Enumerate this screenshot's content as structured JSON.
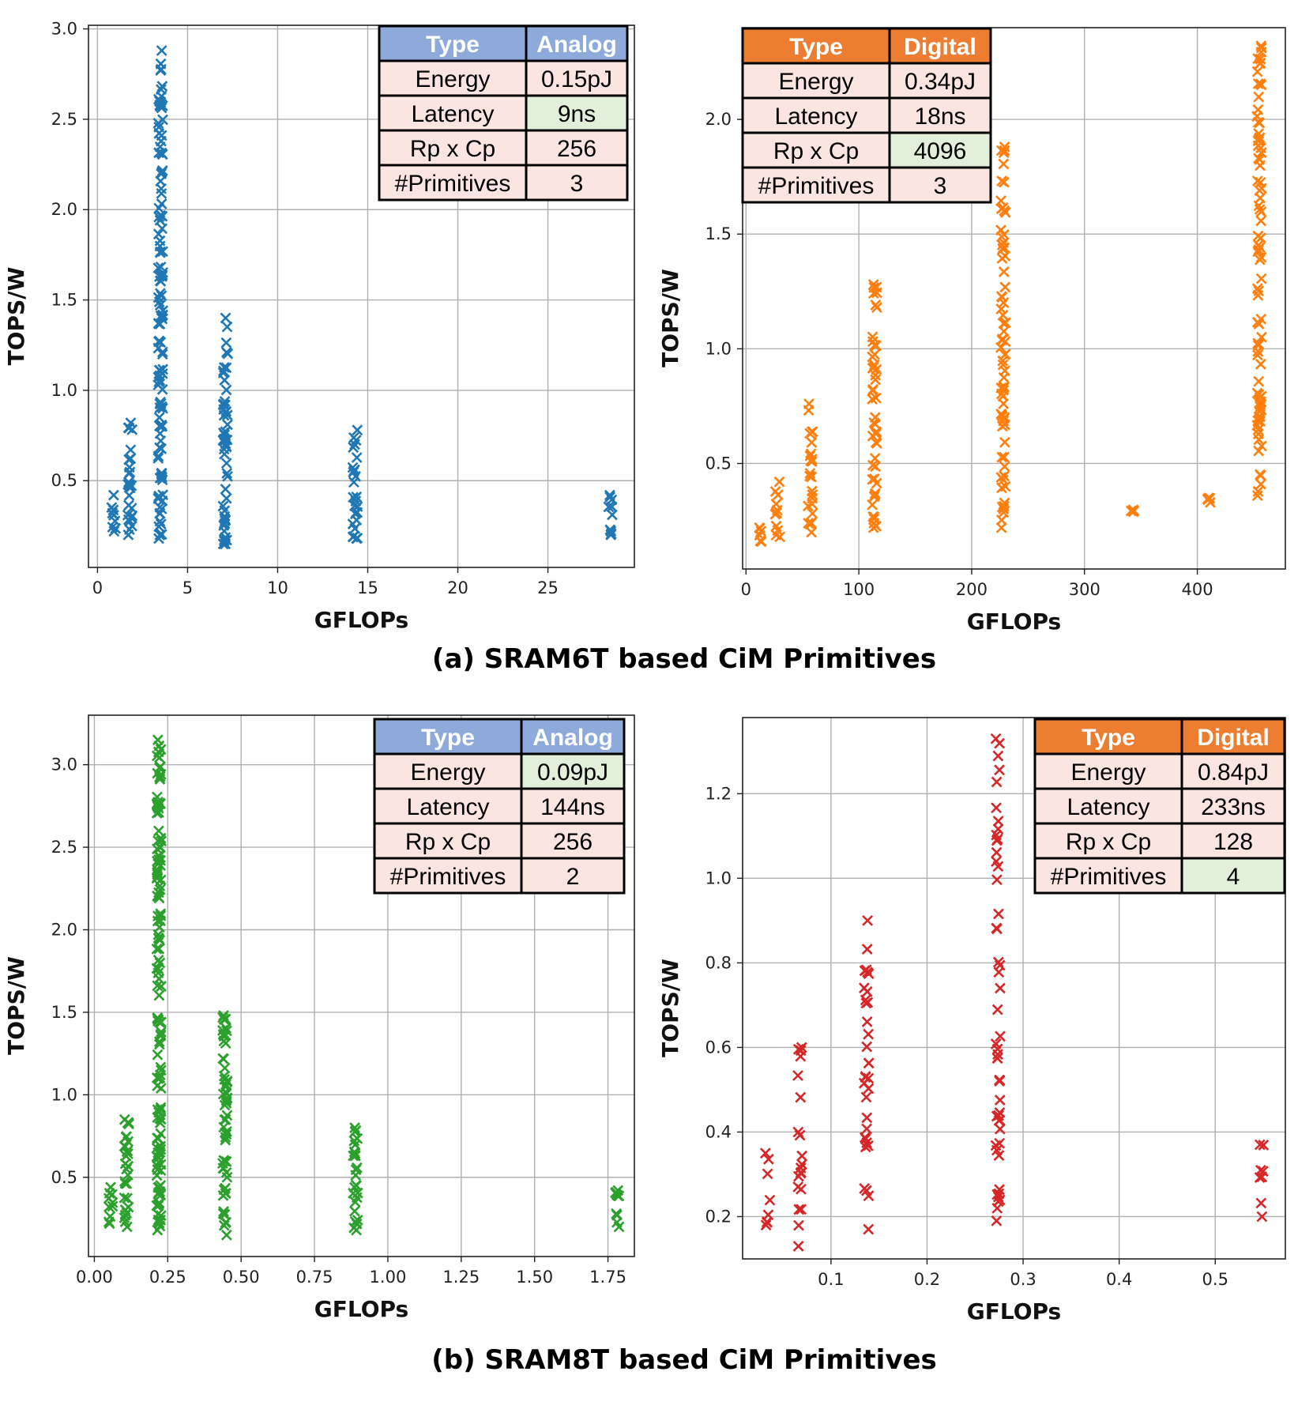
{
  "chart_data": [
    {
      "type": "scatter",
      "id": "sram6t-analog",
      "xlabel": "GFLOPs",
      "ylabel": "TOPS/W",
      "xlim": [
        -0.5,
        29.8
      ],
      "ylim": [
        0.02,
        3.02
      ],
      "xticks": [
        "0",
        "5",
        "10",
        "15",
        "20",
        "25"
      ],
      "xtick_values": [
        0,
        5,
        10,
        15,
        20,
        25
      ],
      "yticks": [
        "0.5",
        "1.0",
        "1.5",
        "2.0",
        "2.5",
        "3.0"
      ],
      "ytick_values": [
        0.5,
        1.0,
        1.5,
        2.0,
        2.5,
        3.0
      ],
      "grid": true,
      "color": "#1f77b4",
      "marker": "x",
      "series": [
        {
          "name": "SRAM6T Analog",
          "clusters": [
            {
              "x": 0.9,
              "ymin": 0.22,
              "ymax": 0.42
            },
            {
              "x": 1.8,
              "ymin": 0.2,
              "ymax": 0.82
            },
            {
              "x": 3.5,
              "ymin": 0.18,
              "ymax": 2.88
            },
            {
              "x": 7.1,
              "ymin": 0.15,
              "ymax": 1.4
            },
            {
              "x": 14.3,
              "ymin": 0.18,
              "ymax": 0.78
            },
            {
              "x": 28.5,
              "ymin": 0.2,
              "ymax": 0.42
            }
          ]
        }
      ],
      "table": {
        "header": [
          "Type",
          "Analog"
        ],
        "rows": [
          [
            "Energy",
            "0.15pJ"
          ],
          [
            "Latency",
            "9ns"
          ],
          [
            "Rp x Cp",
            "256"
          ],
          [
            "#Primitives",
            "3"
          ]
        ],
        "highlight_row": 1,
        "header_color": "#8eaadb"
      }
    },
    {
      "type": "scatter",
      "id": "sram6t-digital",
      "xlabel": "GFLOPs",
      "ylabel": "TOPS/W",
      "xlim": [
        -3,
        478
      ],
      "ylim": [
        0.04,
        2.4
      ],
      "xticks": [
        "0",
        "100",
        "200",
        "300",
        "400"
      ],
      "xtick_values": [
        0,
        100,
        200,
        300,
        400
      ],
      "yticks": [
        "0.5",
        "1.0",
        "1.5",
        "2.0"
      ],
      "ytick_values": [
        0.5,
        1.0,
        1.5,
        2.0
      ],
      "grid": true,
      "color": "#ff7f0e",
      "marker": "x",
      "series": [
        {
          "name": "SRAM6T Digital",
          "clusters": [
            {
              "x": 14,
              "ymin": 0.16,
              "ymax": 0.22
            },
            {
              "x": 28,
              "ymin": 0.18,
              "ymax": 0.42
            },
            {
              "x": 57,
              "ymin": 0.2,
              "ymax": 0.76
            },
            {
              "x": 114,
              "ymin": 0.22,
              "ymax": 1.28
            },
            {
              "x": 228,
              "ymin": 0.22,
              "ymax": 1.88
            },
            {
              "x": 342,
              "ymin": 0.29,
              "ymax": 0.29
            },
            {
              "x": 410,
              "ymin": 0.34,
              "ymax": 0.34
            },
            {
              "x": 455,
              "ymin": 0.36,
              "ymax": 2.32
            }
          ]
        }
      ],
      "table": {
        "header": [
          "Type",
          "Digital"
        ],
        "rows": [
          [
            "Energy",
            "0.34pJ"
          ],
          [
            "Latency",
            "18ns"
          ],
          [
            "Rp x Cp",
            "4096"
          ],
          [
            "#Primitives",
            "3"
          ]
        ],
        "highlight_row": 2,
        "header_color": "#ed7d31"
      }
    },
    {
      "type": "scatter",
      "id": "sram8t-analog",
      "xlabel": "GFLOPs",
      "ylabel": "TOPS/W",
      "xlim": [
        -0.02,
        1.84
      ],
      "ylim": [
        0.02,
        3.3
      ],
      "xticks": [
        "0.00",
        "0.25",
        "0.50",
        "0.75",
        "1.00",
        "1.25",
        "1.50",
        "1.75"
      ],
      "xtick_values": [
        0,
        0.25,
        0.5,
        0.75,
        1.0,
        1.25,
        1.5,
        1.75
      ],
      "yticks": [
        "0.5",
        "1.0",
        "1.5",
        "2.0",
        "2.5",
        "3.0"
      ],
      "ytick_values": [
        0.5,
        1.0,
        1.5,
        2.0,
        2.5,
        3.0
      ],
      "grid": true,
      "color": "#2ca02c",
      "marker": "x",
      "series": [
        {
          "name": "SRAM8T Analog",
          "clusters": [
            {
              "x": 0.055,
              "ymin": 0.22,
              "ymax": 0.44
            },
            {
              "x": 0.11,
              "ymin": 0.2,
              "ymax": 0.85
            },
            {
              "x": 0.22,
              "ymin": 0.18,
              "ymax": 3.15
            },
            {
              "x": 0.445,
              "ymin": 0.15,
              "ymax": 1.48
            },
            {
              "x": 0.89,
              "ymin": 0.18,
              "ymax": 0.8
            },
            {
              "x": 1.78,
              "ymin": 0.2,
              "ymax": 0.42
            }
          ]
        }
      ],
      "table": {
        "header": [
          "Type",
          "Analog"
        ],
        "rows": [
          [
            "Energy",
            "0.09pJ"
          ],
          [
            "Latency",
            "144ns"
          ],
          [
            "Rp x Cp",
            "256"
          ],
          [
            "#Primitives",
            "2"
          ]
        ],
        "highlight_row": 0,
        "header_color": "#8eaadb"
      }
    },
    {
      "type": "scatter",
      "id": "sram8t-digital",
      "xlabel": "GFLOPs",
      "ylabel": "TOPS/W",
      "xlim": [
        0.008,
        0.573
      ],
      "ylim": [
        0.1,
        1.38
      ],
      "xticks": [
        "0.1",
        "0.2",
        "0.3",
        "0.4",
        "0.5"
      ],
      "xtick_values": [
        0.1,
        0.2,
        0.3,
        0.4,
        0.5
      ],
      "yticks": [
        "0.2",
        "0.4",
        "0.6",
        "0.8",
        "1.0",
        "1.2"
      ],
      "ytick_values": [
        0.2,
        0.4,
        0.6,
        0.8,
        1.0,
        1.2
      ],
      "grid": true,
      "color": "#d62728",
      "marker": "x",
      "series": [
        {
          "name": "SRAM8T Digital",
          "clusters": [
            {
              "x": 0.034,
              "ymin": 0.18,
              "ymax": 0.35
            },
            {
              "x": 0.068,
              "ymin": 0.13,
              "ymax": 0.6
            },
            {
              "x": 0.137,
              "ymin": 0.17,
              "ymax": 0.9
            },
            {
              "x": 0.274,
              "ymin": 0.19,
              "ymax": 1.33
            },
            {
              "x": 0.548,
              "ymin": 0.2,
              "ymax": 0.37
            }
          ]
        }
      ],
      "table": {
        "header": [
          "Type",
          "Digital"
        ],
        "rows": [
          [
            "Energy",
            "0.84pJ"
          ],
          [
            "Latency",
            "233ns"
          ],
          [
            "Rp x Cp",
            "128"
          ],
          [
            "#Primitives",
            "4"
          ]
        ],
        "highlight_row": 3,
        "header_color": "#ed7d31"
      }
    }
  ],
  "captions": {
    "a": "(a) SRAM6T based CiM Primitives",
    "b": "(b) SRAM8T based CiM Primitives"
  },
  "colors": {
    "cell_bg": "#fbe5e0",
    "cell_highlight": "#e2efda",
    "grid": "#b0b0b0"
  }
}
